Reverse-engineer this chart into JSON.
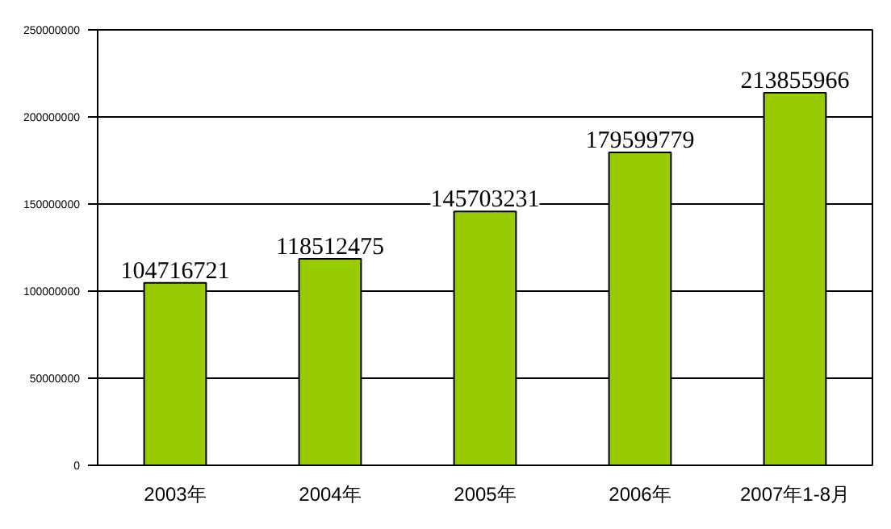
{
  "chart_data": {
    "type": "bar",
    "categories": [
      "2003年",
      "2004年",
      "2005年",
      "2006年",
      "2007年1-8月"
    ],
    "values": [
      104716721,
      118512475,
      145703231,
      179599779,
      213855966
    ],
    "color": "#99cc00",
    "ylim": [
      0,
      250000000
    ],
    "yticks": [
      0,
      50000000,
      100000000,
      150000000,
      200000000,
      250000000
    ],
    "grid": "y",
    "data_labels": true
  }
}
